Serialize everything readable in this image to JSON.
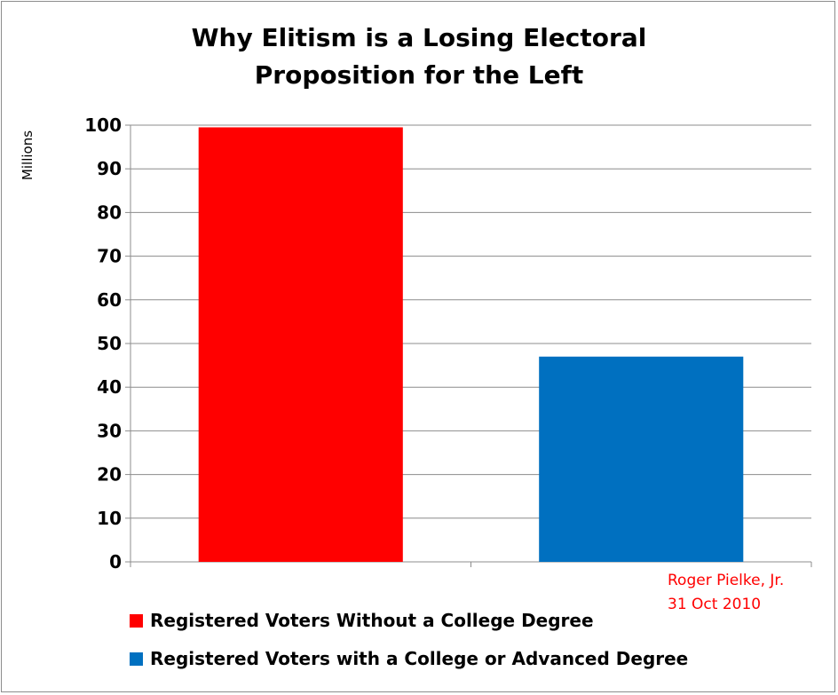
{
  "chart_data": {
    "type": "bar",
    "title": [
      "Why Elitism is a Losing Electoral",
      "Proposition for the Left"
    ],
    "ylabel": "Millions",
    "ylim": [
      0,
      100
    ],
    "yticks": [
      0,
      10,
      20,
      30,
      40,
      50,
      60,
      70,
      80,
      90,
      100
    ],
    "grid": true,
    "series": [
      {
        "name": "Registered Voters Without a College Degree",
        "value": 99.5,
        "color": "#ff0000"
      },
      {
        "name": "Registered Voters with a College or Advanced Degree",
        "value": 47,
        "color": "#0070c0"
      }
    ],
    "legend_position": "bottom-left",
    "annotation": [
      "Roger Pielke, Jr.",
      "31 Oct 2010"
    ],
    "annotation_color": "#ff0000"
  }
}
